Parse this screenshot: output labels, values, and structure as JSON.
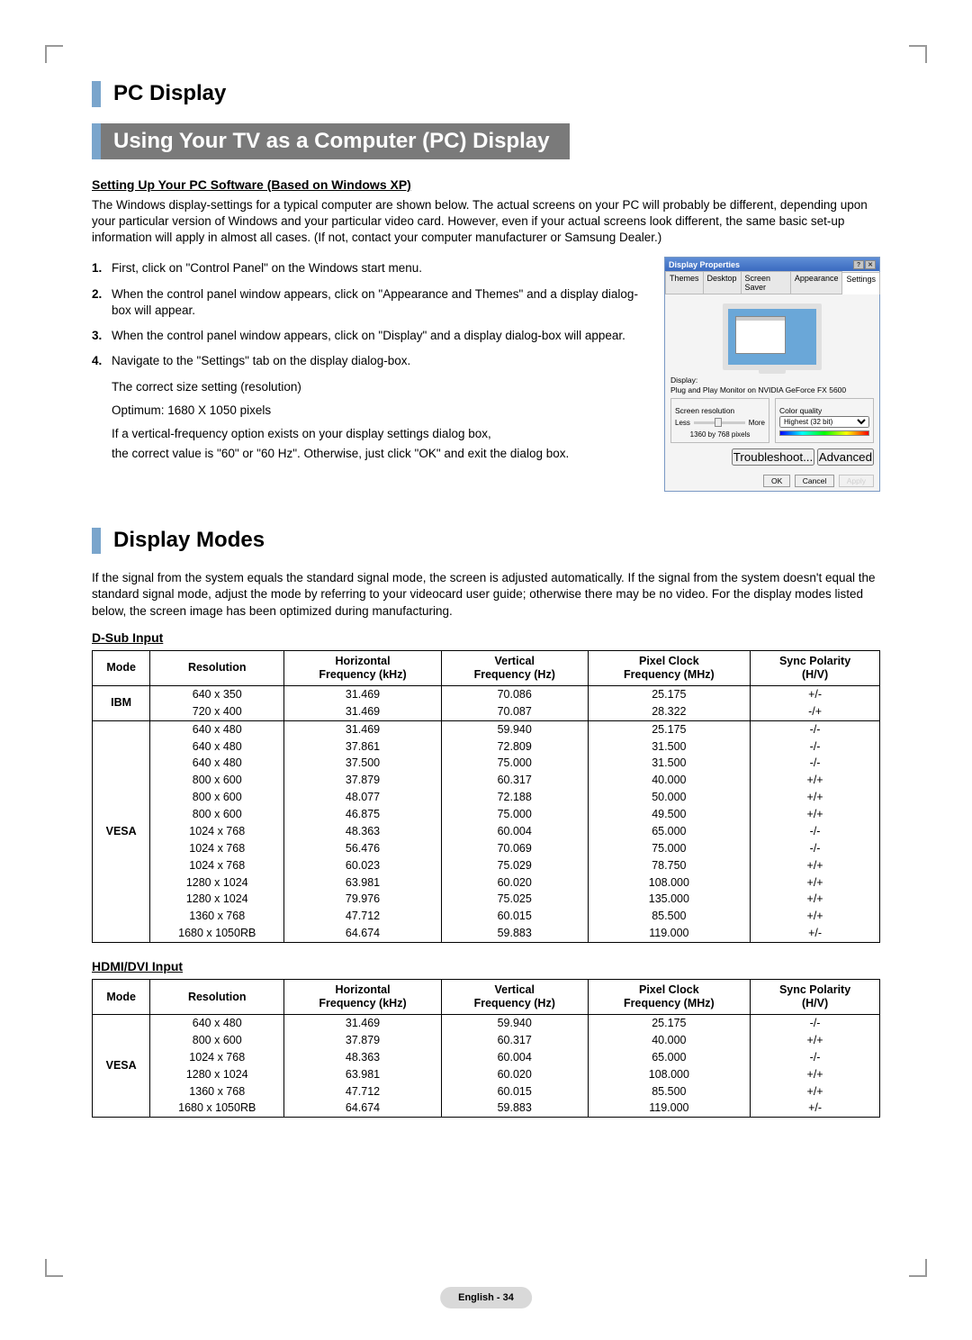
{
  "section_title": "PC Display",
  "subsection_using": "Using Your TV as a Computer (PC) Display",
  "setup_heading": "Setting Up Your PC Software (Based on Windows XP)",
  "setup_intro": "The Windows display-settings for a typical computer are shown below. The actual screens on your PC will probably be different, depending upon your particular version of Windows and your particular video card. However, even if your actual screens look different, the same basic set-up information will apply in almost all cases. (If not, contact your computer manufacturer or Samsung Dealer.)",
  "steps": [
    "First, click on \"Control Panel\" on the Windows start menu.",
    "When the control panel window appears, click on \"Appearance and Themes\" and a display dialog-box will appear.",
    "When the control panel window appears, click on \"Display\" and a display dialog-box will appear.",
    "Navigate to the \"Settings\" tab on the display dialog-box."
  ],
  "step4_lines": [
    "The correct size setting (resolution)",
    "Optimum: 1680 X 1050 pixels",
    "If a vertical-frequency option exists on your display settings dialog box,",
    "the correct value is \"60\" or \"60 Hz\". Otherwise, just click \"OK\" and exit the dialog box."
  ],
  "dialog": {
    "title": "Display Properties",
    "tabs": [
      "Themes",
      "Desktop",
      "Screen Saver",
      "Appearance",
      "Settings"
    ],
    "active_tab": 4,
    "display_label": "Display:",
    "display_value": "Plug and Play Monitor on NVIDIA GeForce FX 5600",
    "screen_res_label": "Screen resolution",
    "less": "Less",
    "more": "More",
    "res_value": "1360 by 768 pixels",
    "color_label": "Color quality",
    "color_value": "Highest (32 bit)",
    "troubleshoot": "Troubleshoot...",
    "advanced": "Advanced",
    "ok": "OK",
    "cancel": "Cancel",
    "apply": "Apply"
  },
  "display_modes_title": "Display Modes",
  "display_modes_intro": "If the signal from the system equals the standard signal mode, the screen is adjusted automatically.  If the signal from the system doesn't equal the standard signal mode, adjust the mode by referring to your videocard user guide; otherwise there may be no video. For the display modes listed below, the screen image has been optimized during manufacturing.",
  "dsub_heading": "D-Sub Input",
  "hdmi_heading": "HDMI/DVI Input",
  "columns": [
    "Mode",
    "Resolution",
    "Horizontal\nFrequency (kHz)",
    "Vertical\nFrequency (Hz)",
    "Pixel Clock\nFrequency (MHz)",
    "Sync Polarity\n(H/V)"
  ],
  "dsub_groups": [
    {
      "mode": "IBM",
      "rows": [
        [
          "640 x 350",
          "31.469",
          "70.086",
          "25.175",
          "+/-"
        ],
        [
          "720 x 400",
          "31.469",
          "70.087",
          "28.322",
          "-/+"
        ]
      ]
    },
    {
      "mode": "VESA",
      "rows": [
        [
          "640 x 480",
          "31.469",
          "59.940",
          "25.175",
          "-/-"
        ],
        [
          "640 x 480",
          "37.861",
          "72.809",
          "31.500",
          "-/-"
        ],
        [
          "640 x 480",
          "37.500",
          "75.000",
          "31.500",
          "-/-"
        ],
        [
          "800 x 600",
          "37.879",
          "60.317",
          "40.000",
          "+/+"
        ],
        [
          "800 x 600",
          "48.077",
          "72.188",
          "50.000",
          "+/+"
        ],
        [
          "800 x 600",
          "46.875",
          "75.000",
          "49.500",
          "+/+"
        ],
        [
          "1024 x 768",
          "48.363",
          "60.004",
          "65.000",
          "-/-"
        ],
        [
          "1024 x 768",
          "56.476",
          "70.069",
          "75.000",
          "-/-"
        ],
        [
          "1024 x 768",
          "60.023",
          "75.029",
          "78.750",
          "+/+"
        ],
        [
          "1280 x 1024",
          "63.981",
          "60.020",
          "108.000",
          "+/+"
        ],
        [
          "1280 x 1024",
          "79.976",
          "75.025",
          "135.000",
          "+/+"
        ],
        [
          "1360 x 768",
          "47.712",
          "60.015",
          "85.500",
          "+/+"
        ],
        [
          "1680 x 1050RB",
          "64.674",
          "59.883",
          "119.000",
          "+/-"
        ]
      ]
    }
  ],
  "hdmi_groups": [
    {
      "mode": "VESA",
      "rows": [
        [
          "640 x 480",
          "31.469",
          "59.940",
          "25.175",
          "-/-"
        ],
        [
          "800 x 600",
          "37.879",
          "60.317",
          "40.000",
          "+/+"
        ],
        [
          "1024 x 768",
          "48.363",
          "60.004",
          "65.000",
          "-/-"
        ],
        [
          "1280 x 1024",
          "63.981",
          "60.020",
          "108.000",
          "+/+"
        ],
        [
          "1360 x 768",
          "47.712",
          "60.015",
          "85.500",
          "+/+"
        ],
        [
          "1680 x 1050RB",
          "64.674",
          "59.883",
          "119.000",
          "+/-"
        ]
      ]
    }
  ],
  "page_label": "English - 34",
  "colors": {
    "accent": "#7aa5cc",
    "header_bg": "#7a7a7a",
    "dialog_titlebar_top": "#5f8ed6",
    "dialog_titlebar_bot": "#3a6ac0"
  }
}
